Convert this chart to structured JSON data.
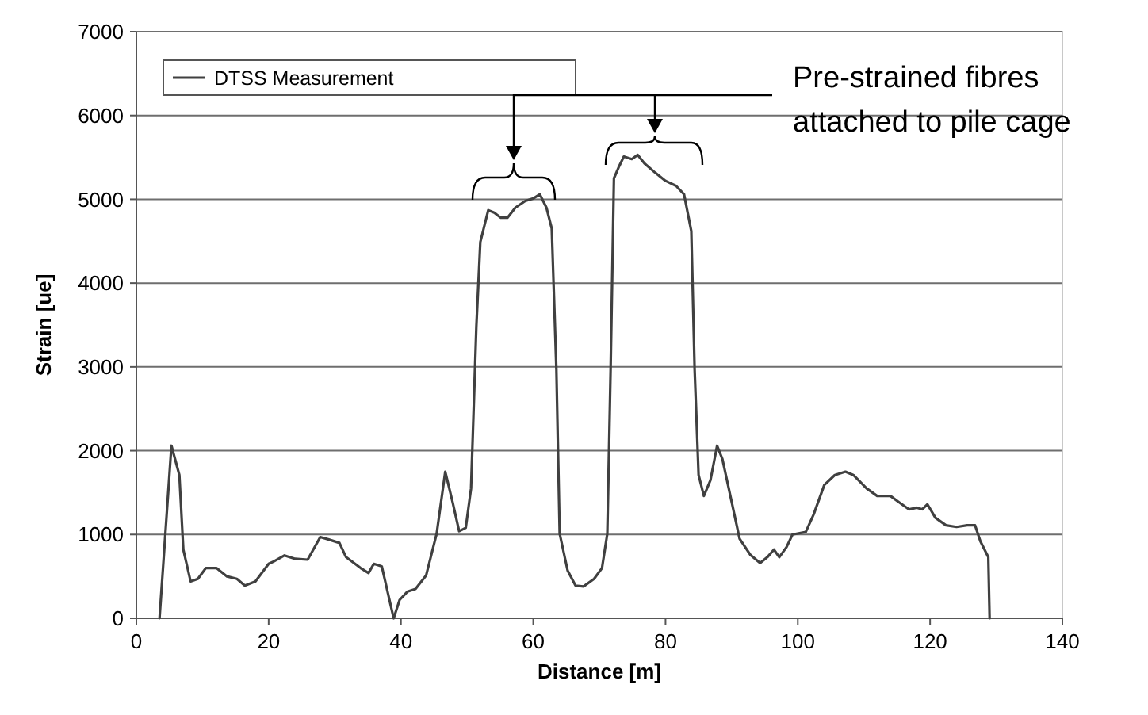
{
  "chart_data": {
    "type": "line",
    "xlabel": "Distance [m]",
    "ylabel": "Strain [ue]",
    "xlim": [
      0,
      140
    ],
    "xticks": [
      0,
      20,
      40,
      60,
      80,
      100,
      120,
      140
    ],
    "ylim": [
      0,
      7000
    ],
    "yticks": [
      0,
      1000,
      2000,
      3000,
      4000,
      5000,
      6000,
      7000
    ],
    "grid": "y",
    "legend": "top left",
    "marker": "none",
    "line_style": "solid",
    "annotations": [
      "Pre-strained fibres attached to pile cage"
    ],
    "series": [
      {
        "name": "DTSS Measurement",
        "color": "#404040",
        "x": [
          3.5,
          5.3,
          6.5,
          7.1,
          8.2,
          9.3,
          10.5,
          12.1,
          13.7,
          15.2,
          16.4,
          18,
          20,
          20.8,
          22.4,
          24,
          25.9,
          27.8,
          29.1,
          30.7,
          31.7,
          33.9,
          35.1,
          35.9,
          37.1,
          38.9,
          39.8,
          41,
          42.2,
          43.8,
          45.4,
          46.7,
          47.8,
          48.8,
          49.8,
          50.6,
          51.4,
          52,
          53.2,
          54.1,
          55.1,
          56.1,
          57.3,
          58.8,
          60,
          61,
          62,
          62.8,
          63.5,
          64,
          65.2,
          66.4,
          67.6,
          69.2,
          70.4,
          71.2,
          71.7,
          72.2,
          72.9,
          73.7,
          74.9,
          75.8,
          76.8,
          78.4,
          80,
          81.6,
          82.8,
          83.9,
          84.4,
          85,
          85.8,
          86.8,
          87.8,
          88.6,
          90,
          91.2,
          92.8,
          94.3,
          95.4,
          96.4,
          97.2,
          98.3,
          99.2,
          101.2,
          102.4,
          104,
          105.6,
          107.2,
          108.4,
          110.4,
          112,
          114,
          115.2,
          116.8,
          118,
          118.8,
          119.6,
          120.8,
          122.4,
          124,
          125.6,
          126.8,
          127.6,
          128.8,
          129
        ],
        "values": [
          0,
          2060,
          1710,
          820,
          440,
          470,
          600,
          600,
          500,
          470,
          390,
          440,
          650,
          680,
          750,
          710,
          700,
          970,
          940,
          900,
          730,
          600,
          540,
          650,
          620,
          0,
          220,
          320,
          350,
          510,
          1010,
          1750,
          1390,
          1040,
          1080,
          1550,
          3480,
          4490,
          4870,
          4840,
          4780,
          4780,
          4900,
          4980,
          5010,
          5060,
          4900,
          4650,
          2970,
          1010,
          570,
          390,
          380,
          470,
          600,
          1010,
          2970,
          5250,
          5380,
          5510,
          5480,
          5530,
          5430,
          5320,
          5220,
          5160,
          5060,
          4620,
          2970,
          1710,
          1460,
          1650,
          2060,
          1900,
          1390,
          950,
          760,
          660,
          730,
          820,
          730,
          850,
          1000,
          1030,
          1240,
          1590,
          1710,
          1750,
          1710,
          1550,
          1460,
          1460,
          1390,
          1300,
          1320,
          1300,
          1360,
          1200,
          1110,
          1090,
          1110,
          1110,
          920,
          730,
          0
        ]
      }
    ]
  }
}
